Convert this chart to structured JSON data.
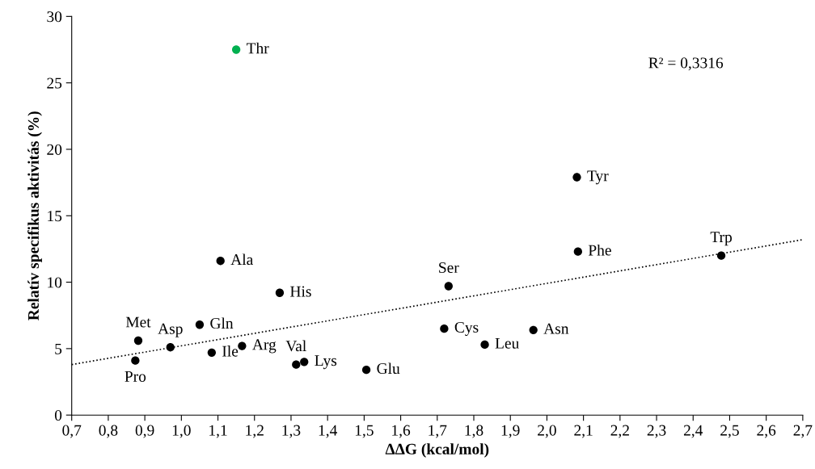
{
  "chart_data": {
    "type": "scatter",
    "xlabel": "ΔΔG (kcal/mol)",
    "ylabel": "Relatív specifikus aktivitás (%)",
    "xlim": [
      0.7,
      2.7
    ],
    "xticks": [
      {
        "value": 0.7,
        "label": "0,7"
      },
      {
        "value": 0.8,
        "label": "0,8"
      },
      {
        "value": 0.9,
        "label": "0,9"
      },
      {
        "value": 1.0,
        "label": "1,0"
      },
      {
        "value": 1.1,
        "label": "1,1"
      },
      {
        "value": 1.2,
        "label": "1,2"
      },
      {
        "value": 1.3,
        "label": "1,3"
      },
      {
        "value": 1.4,
        "label": "1,4"
      },
      {
        "value": 1.5,
        "label": "1,5"
      },
      {
        "value": 1.6,
        "label": "1,6"
      },
      {
        "value": 1.7,
        "label": "1,7"
      },
      {
        "value": 1.8,
        "label": "1,8"
      },
      {
        "value": 1.9,
        "label": "1,9"
      },
      {
        "value": 2.0,
        "label": "2,0"
      },
      {
        "value": 2.1,
        "label": "2,1"
      },
      {
        "value": 2.2,
        "label": "2,2"
      },
      {
        "value": 2.3,
        "label": "2,3"
      },
      {
        "value": 2.4,
        "label": "2,4"
      },
      {
        "value": 2.5,
        "label": "2,5"
      },
      {
        "value": 2.6,
        "label": "2,6"
      },
      {
        "value": 2.7,
        "label": "2,7"
      }
    ],
    "ylim": [
      0,
      30
    ],
    "yticks": [
      0,
      5,
      10,
      15,
      20,
      25,
      30
    ],
    "grid": false,
    "legend": false,
    "marker": "circle",
    "series": [
      {
        "color": "#000000",
        "x": [
          0.882,
          0.874,
          0.97,
          1.05,
          1.083,
          1.166,
          1.269,
          1.314,
          1.336,
          1.506,
          1.107,
          2.082,
          2.085,
          2.477,
          1.731,
          1.719,
          1.83,
          1.963
        ],
        "values": [
          5.6,
          4.1,
          5.1,
          6.8,
          4.7,
          5.2,
          9.2,
          3.8,
          4.0,
          3.4,
          11.6,
          17.9,
          12.3,
          12.0,
          9.7,
          6.5,
          5.3,
          6.4
        ]
      },
      {
        "color": "#00b050",
        "x": [
          1.15
        ],
        "values": [
          27.5
        ]
      },
      {
        "type": "line",
        "color": "#000000",
        "line_style": "dotted",
        "marker": "none",
        "x": [
          0.7,
          2.7
        ],
        "values": [
          3.8,
          13.2
        ]
      }
    ],
    "annotations": [
      {
        "text": "Met",
        "x": 0.882,
        "y": 5.6
      },
      {
        "text": "Pro",
        "x": 0.874,
        "y": 4.1
      },
      {
        "text": "Asp",
        "x": 0.97,
        "y": 5.1
      },
      {
        "text": "Gln",
        "x": 1.05,
        "y": 6.8
      },
      {
        "text": "Ile",
        "x": 1.083,
        "y": 4.7
      },
      {
        "text": "Arg",
        "x": 1.166,
        "y": 5.2
      },
      {
        "text": "His",
        "x": 1.269,
        "y": 9.2
      },
      {
        "text": "Val",
        "x": 1.314,
        "y": 3.8
      },
      {
        "text": "Lys",
        "x": 1.336,
        "y": 4.0
      },
      {
        "text": "Glu",
        "x": 1.506,
        "y": 3.4
      },
      {
        "text": "Ala",
        "x": 1.107,
        "y": 11.6
      },
      {
        "text": "Tyr",
        "x": 2.082,
        "y": 17.9
      },
      {
        "text": "Phe",
        "x": 2.085,
        "y": 12.3
      },
      {
        "text": "Trp",
        "x": 2.477,
        "y": 12.0
      },
      {
        "text": "Ser",
        "x": 1.731,
        "y": 9.7
      },
      {
        "text": "Cys",
        "x": 1.719,
        "y": 6.5
      },
      {
        "text": "Leu",
        "x": 1.83,
        "y": 5.3
      },
      {
        "text": "Asn",
        "x": 1.963,
        "y": 6.4
      },
      {
        "text": "Thr",
        "x": 1.15,
        "y": 27.5
      },
      "R² = 0,3316"
    ]
  }
}
